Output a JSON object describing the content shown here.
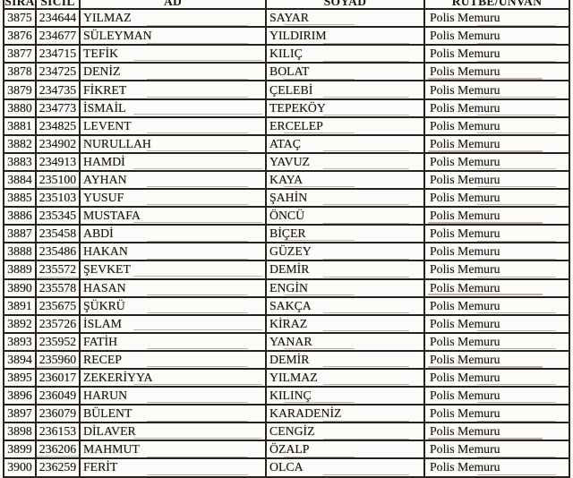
{
  "document": {
    "type": "scanned-personnel-list",
    "paper_color": "#fdfcfa",
    "ink_color": "#1a1712",
    "border_color": "#26231f"
  },
  "table": {
    "columns": [
      "SIRA",
      "SİCİL",
      "AD",
      "SOYAD",
      "RÜTBE/UNVAN"
    ],
    "rows": [
      [
        "3875",
        "234644",
        "YILMAZ",
        "SAYAR",
        "Polis Memuru"
      ],
      [
        "3876",
        "234677",
        "SÜLEYMAN",
        "YILDIRIM",
        "Polis Memuru"
      ],
      [
        "3877",
        "234715",
        "TEFİK",
        "KILIÇ",
        "Polis Memuru"
      ],
      [
        "3878",
        "234725",
        "DENİZ",
        "BOLAT",
        "Polis Memuru"
      ],
      [
        "3879",
        "234735",
        "FİKRET",
        "ÇELEBİ",
        "Polis Memuru"
      ],
      [
        "3880",
        "234773",
        "İSMAİL",
        "TEPEKÖY",
        "Polis Memuru"
      ],
      [
        "3881",
        "234825",
        "LEVENT",
        "ERCELEP",
        "Polis Memuru"
      ],
      [
        "3882",
        "234902",
        "NURULLAH",
        "ATAÇ",
        "Polis Memuru"
      ],
      [
        "3883",
        "234913",
        "HAMDİ",
        "YAVUZ",
        "Polis Memuru"
      ],
      [
        "3884",
        "235100",
        "AYHAN",
        "KAYA",
        "Polis Memuru"
      ],
      [
        "3885",
        "235103",
        "YUSUF",
        "ŞAHİN",
        "Polis Memuru"
      ],
      [
        "3886",
        "235345",
        "MUSTAFA",
        "ÖNCÜ",
        "Polis Memuru"
      ],
      [
        "3887",
        "235458",
        "ABDİ",
        "BİÇER",
        "Polis Memuru"
      ],
      [
        "3888",
        "235486",
        "HAKAN",
        "GÜZEY",
        "Polis Memuru"
      ],
      [
        "3889",
        "235572",
        "ŞEVKET",
        "DEMİR",
        "Polis Memuru"
      ],
      [
        "3890",
        "235578",
        "HASAN",
        "ENGİN",
        "Polis Memuru"
      ],
      [
        "3891",
        "235675",
        "ŞÜKRÜ",
        "SAKÇA",
        "Polis Memuru"
      ],
      [
        "3892",
        "235726",
        "İSLAM",
        "KİRAZ",
        "Polis Memuru"
      ],
      [
        "3893",
        "235952",
        "FATİH",
        "YANAR",
        "Polis Memuru"
      ],
      [
        "3894",
        "235960",
        "RECEP",
        "DEMİR",
        "Polis Memuru"
      ],
      [
        "3895",
        "236017",
        "ZEKERİYYA",
        "YILMAZ",
        "Polis Memuru"
      ],
      [
        "3896",
        "236049",
        "HARUN",
        "KILINÇ",
        "Polis Memuru"
      ],
      [
        "3897",
        "236079",
        "BÜLENT",
        "KARADENİZ",
        "Polis Memuru"
      ],
      [
        "3898",
        "236153",
        "DİLAVER",
        "CENGİZ",
        "Polis Memuru"
      ],
      [
        "3899",
        "236206",
        "MAHMUT",
        "ÖZALP",
        "Polis Memuru"
      ],
      [
        "3900",
        "236259",
        "FERİT",
        "OLCA",
        "Polis Memuru"
      ]
    ]
  }
}
